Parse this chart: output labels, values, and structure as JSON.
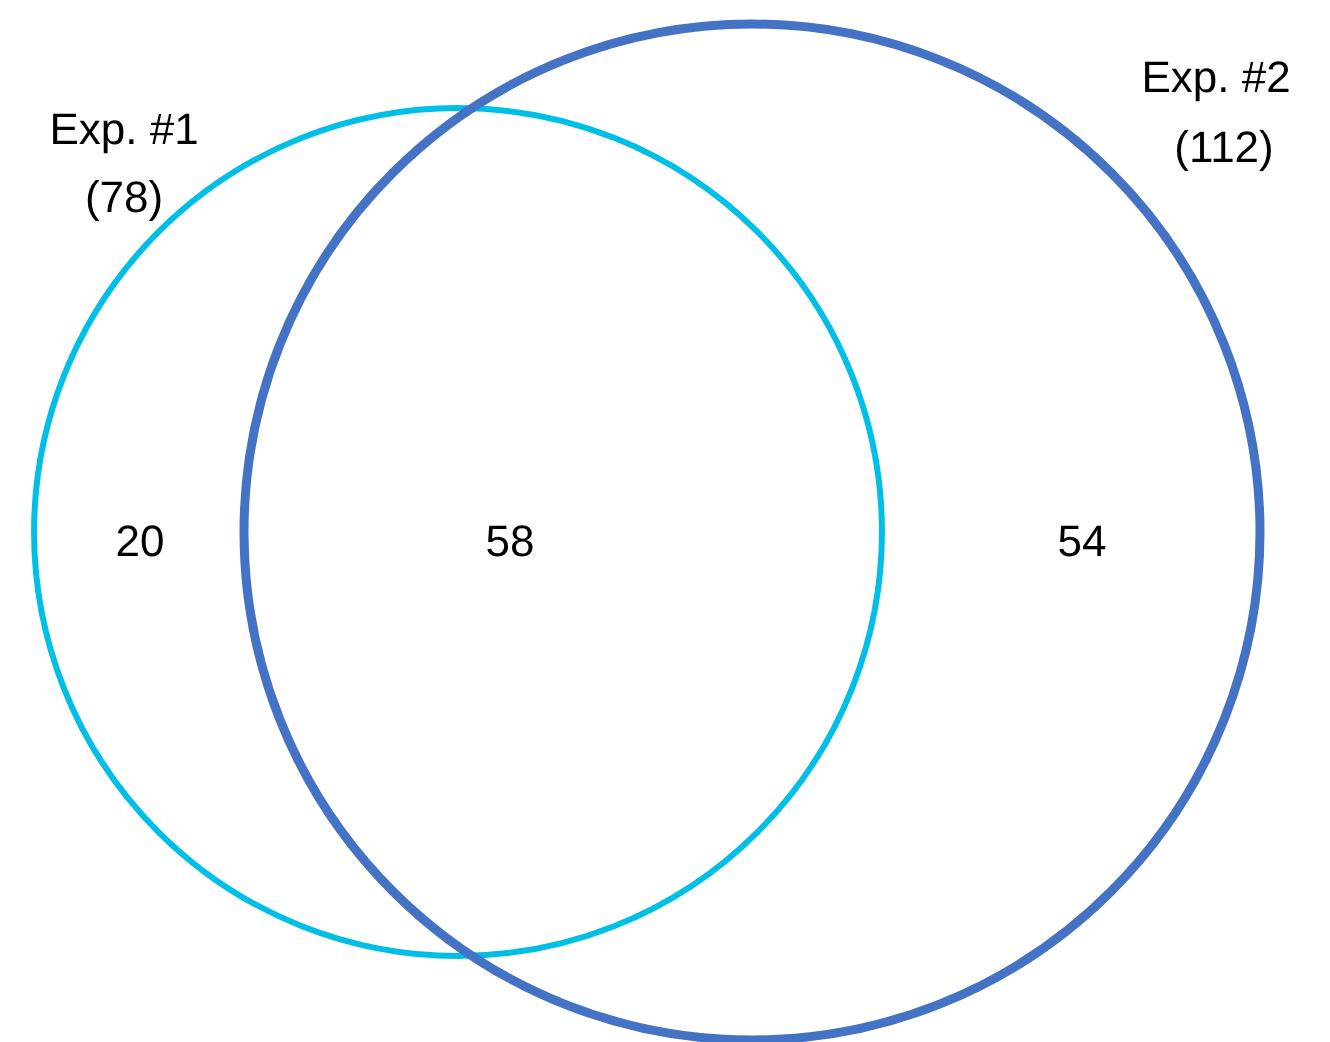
{
  "chart_data": {
    "type": "other",
    "categories": [
      "Exp. #1",
      "Exp. #2"
    ],
    "values": [
      78,
      112
    ],
    "value_labels": [
      "(78)",
      "(112)"
    ],
    "colors": [
      "#00bfe6",
      "#4472c4"
    ],
    "annotations": [
      "20",
      "58",
      "54"
    ]
  }
}
